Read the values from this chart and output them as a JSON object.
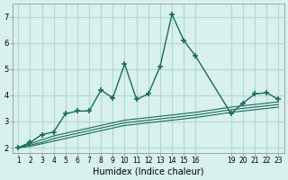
{
  "xlabel": "Humidex (Indice chaleur)",
  "bg_color": "#d8f0ee",
  "line_color": "#1a6b5a",
  "grid_color": "#b0d8d4",
  "x": [
    1,
    2,
    3,
    4,
    5,
    6,
    7,
    8,
    9,
    10,
    11,
    12,
    13,
    14,
    15,
    16,
    19,
    20,
    21,
    22,
    23
  ],
  "y_main": [
    2.0,
    2.2,
    2.5,
    2.6,
    3.3,
    3.4,
    3.4,
    4.2,
    3.9,
    5.2,
    3.85,
    4.05,
    5.1,
    7.1,
    6.1,
    5.5,
    3.3,
    3.7,
    4.05,
    4.1,
    3.85
  ],
  "y_line1": [
    2.0,
    2.15,
    2.3,
    2.45,
    2.55,
    2.65,
    2.75,
    2.85,
    2.95,
    3.05,
    3.1,
    3.15,
    3.2,
    3.25,
    3.3,
    3.35,
    3.55,
    3.6,
    3.65,
    3.7,
    3.75
  ],
  "y_line2": [
    2.0,
    2.1,
    2.2,
    2.35,
    2.45,
    2.55,
    2.65,
    2.75,
    2.85,
    2.95,
    3.0,
    3.05,
    3.1,
    3.15,
    3.2,
    3.25,
    3.45,
    3.5,
    3.55,
    3.6,
    3.65
  ],
  "y_line3": [
    2.0,
    2.05,
    2.15,
    2.25,
    2.35,
    2.45,
    2.55,
    2.65,
    2.75,
    2.85,
    2.9,
    2.95,
    3.0,
    3.05,
    3.1,
    3.15,
    3.35,
    3.4,
    3.45,
    3.5,
    3.55
  ],
  "ylim": [
    1.8,
    7.5
  ],
  "yticks": [
    2,
    3,
    4,
    5,
    6,
    7
  ],
  "xtick_positions": [
    1,
    2,
    3,
    4,
    5,
    6,
    7,
    8,
    9,
    10,
    11,
    12,
    13,
    14,
    15,
    16,
    19,
    20,
    21,
    22,
    23
  ],
  "xtick_labels": [
    "1",
    "2",
    "3",
    "4",
    "5",
    "6",
    "7",
    "8",
    "9",
    "10",
    "11",
    "12",
    "13",
    "14",
    "15",
    "16",
    "19",
    "20",
    "21",
    "22",
    "23"
  ]
}
